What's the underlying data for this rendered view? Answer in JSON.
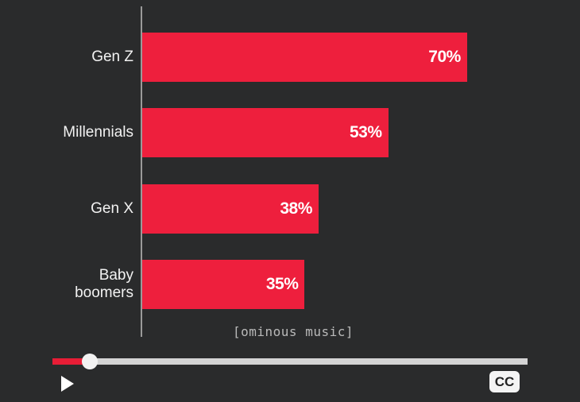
{
  "chart_data": {
    "type": "bar",
    "orientation": "horizontal",
    "categories": [
      "Gen Z",
      "Millennials",
      "Gen X",
      "Baby boomers"
    ],
    "values": [
      70,
      53,
      38,
      35
    ],
    "value_labels": [
      "70%",
      "53%",
      "38%",
      "35%"
    ],
    "color": "#ee1f3d"
  },
  "caption": "[ominous music]",
  "player": {
    "cc_button": "CC"
  }
}
